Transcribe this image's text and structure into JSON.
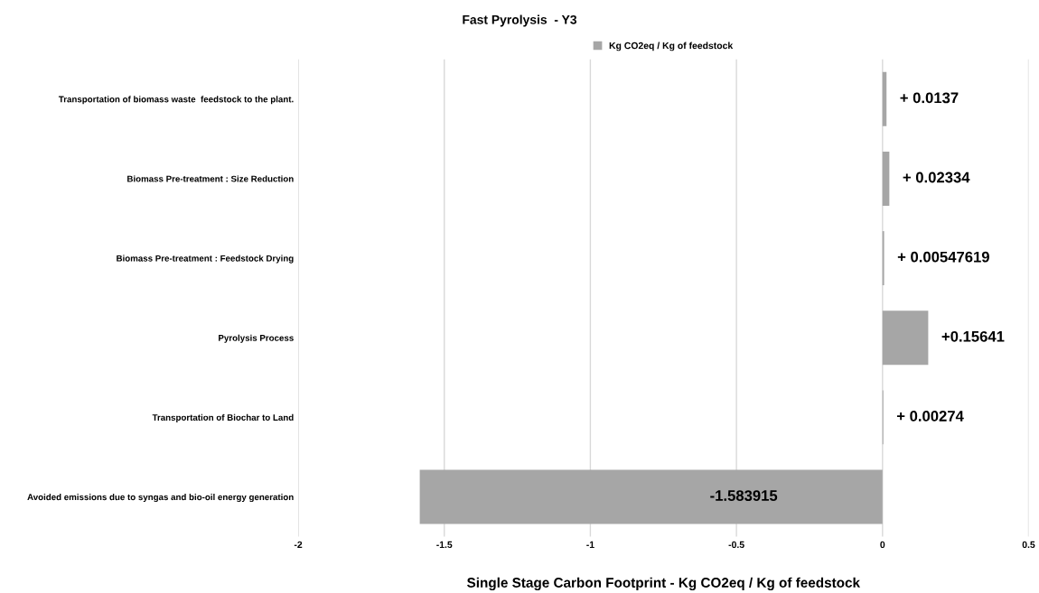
{
  "chart_data": {
    "type": "bar",
    "orientation": "horizontal",
    "title": "Fast Pyrolysis  - Y3",
    "xlabel": "Single Stage Carbon Footprint - Kg CO2eq / Kg of feedstock",
    "categories": [
      "Transportation of biomass waste  feedstock to the plant.",
      "Biomass Pre-treatment : Size Reduction",
      "Biomass Pre-treatment : Feedstock Drying",
      "Pyrolysis Process",
      "Transportation of Biochar to Land",
      "Avoided emissions due to syngas and bio-oil energy generation"
    ],
    "series": [
      {
        "name": "Kg CO2eq / Kg of feedstock",
        "color": "#a6a6a6",
        "values": [
          0.0137,
          0.02334,
          0.00547619,
          0.15641,
          0.00274,
          -1.583915
        ],
        "value_labels": [
          "+ 0.0137",
          "+ 0.02334",
          "+ 0.00547619",
          "+0.15641",
          "+ 0.00274",
          "-1.583915"
        ]
      }
    ],
    "xlim": [
      -2,
      0.5
    ],
    "xticks": [
      -2,
      -1.5,
      -1,
      -0.5,
      0,
      0.5
    ],
    "grid": "x",
    "legend": "top"
  }
}
